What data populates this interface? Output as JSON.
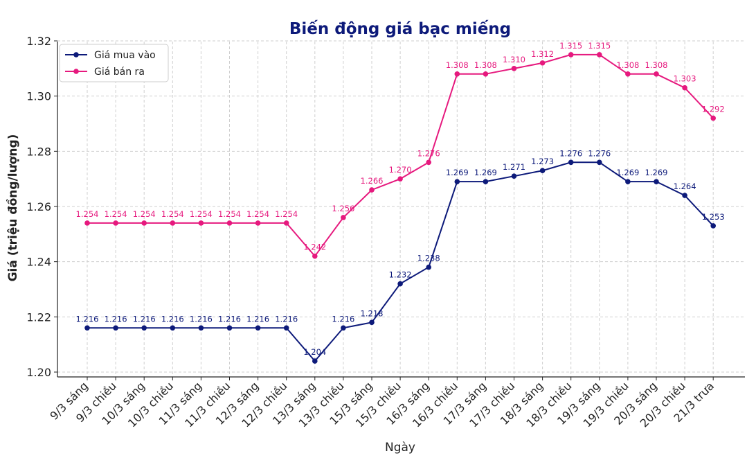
{
  "chart_data": {
    "type": "line",
    "title": "Biến động giá bạc miếng",
    "xlabel": "Ngày",
    "ylabel": "Giá (triệu đồng/lượng)",
    "ylim": [
      1.2,
      1.32
    ],
    "yticks": [
      "1.20",
      "1.22",
      "1.24",
      "1.26",
      "1.28",
      "1.30",
      "1.32"
    ],
    "grid": true,
    "legend_position": "top-left",
    "categories": [
      "9/3 sáng",
      "9/3 chiều",
      "10/3 sáng",
      "10/3 chiều",
      "11/3 sáng",
      "11/3 chiều",
      "12/3 sáng",
      "12/3 chiều",
      "13/3 sáng",
      "13/3 chiều",
      "15/3 sáng",
      "15/3 chiều",
      "16/3 sáng",
      "16/3 chiều",
      "17/3 sáng",
      "17/3 chiều",
      "18/3 sáng",
      "18/3 chiều",
      "19/3 sáng",
      "19/3 chiều",
      "20/3 sáng",
      "20/3 chiều",
      "21/3 trưa"
    ],
    "series": [
      {
        "name": "Giá mua vào",
        "color": "#0d1a7a",
        "values": [
          1.216,
          1.216,
          1.216,
          1.216,
          1.216,
          1.216,
          1.216,
          1.216,
          1.204,
          1.216,
          1.218,
          1.232,
          1.238,
          1.269,
          1.269,
          1.271,
          1.273,
          1.276,
          1.276,
          1.269,
          1.269,
          1.264,
          1.253
        ]
      },
      {
        "name": "Giá bán ra",
        "color": "#e6197e",
        "values": [
          1.254,
          1.254,
          1.254,
          1.254,
          1.254,
          1.254,
          1.254,
          1.254,
          1.242,
          1.256,
          1.266,
          1.27,
          1.276,
          1.308,
          1.308,
          1.31,
          1.312,
          1.315,
          1.315,
          1.308,
          1.308,
          1.303,
          1.292
        ]
      }
    ]
  }
}
